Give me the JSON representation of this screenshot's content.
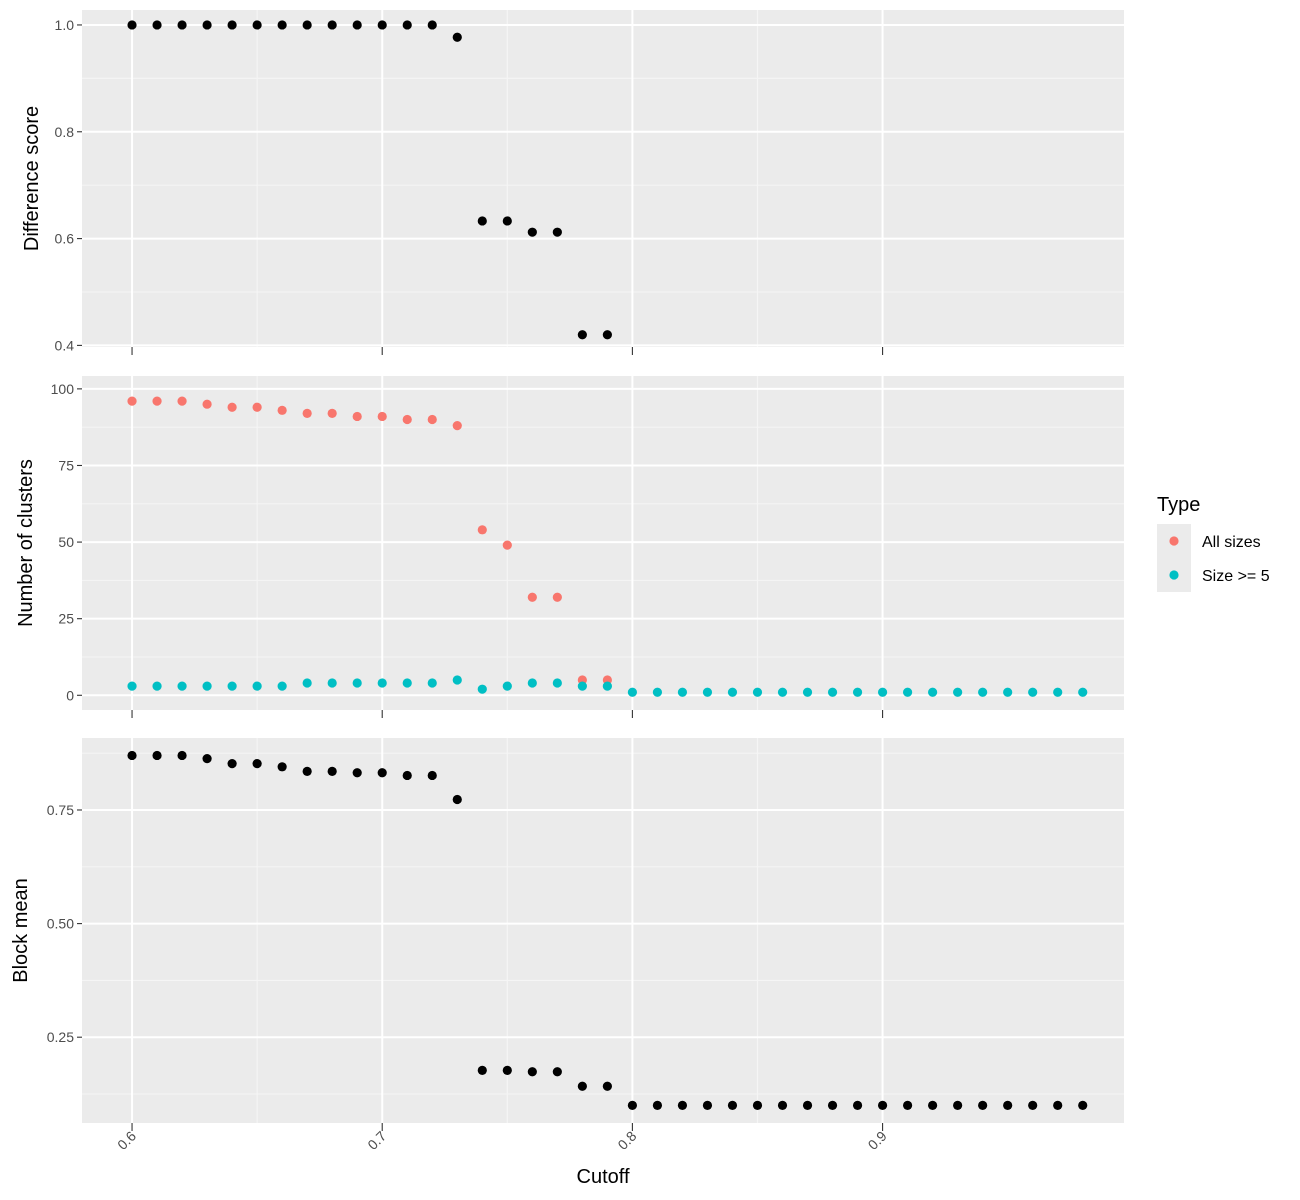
{
  "colors": {
    "panel_background": "#ebebeb",
    "grid_major": "#ffffff",
    "grid_minor": "#f5f5f5",
    "default_point": "#000000",
    "all_sizes": "#f8766d",
    "size_ge_5": "#00bfc4",
    "axis_tick": "#333333"
  },
  "chart_data": [
    {
      "type": "scatter",
      "ylabel": "Difference score",
      "ylim": [
        0.4,
        1.0
      ],
      "yticks": [
        0.4,
        0.6,
        0.8,
        1.0
      ],
      "ytick_labels": [
        "0.4",
        "0.6",
        "0.8",
        "1.0"
      ],
      "series": [
        {
          "x": [
            0.6,
            0.61,
            0.62,
            0.63,
            0.64,
            0.65,
            0.66,
            0.67,
            0.68,
            0.69,
            0.7,
            0.71,
            0.72,
            0.73,
            0.74,
            0.75,
            0.76,
            0.77,
            0.78,
            0.79
          ],
          "y": [
            1.0,
            1.0,
            1.0,
            1.0,
            1.0,
            1.0,
            1.0,
            1.0,
            1.0,
            1.0,
            1.0,
            1.0,
            1.0,
            0.977,
            0.633,
            0.633,
            0.612,
            0.612,
            0.42,
            0.42
          ],
          "color": "#000000"
        }
      ]
    },
    {
      "type": "scatter",
      "ylabel": "Number of clusters",
      "ylim": [
        0,
        100
      ],
      "yticks": [
        0,
        25,
        50,
        75,
        100
      ],
      "ytick_labels": [
        "0",
        "25",
        "50",
        "75",
        "100"
      ],
      "series": [
        {
          "name": "All sizes",
          "color": "#f8766d",
          "x": [
            0.6,
            0.61,
            0.62,
            0.63,
            0.64,
            0.65,
            0.66,
            0.67,
            0.68,
            0.69,
            0.7,
            0.71,
            0.72,
            0.73,
            0.74,
            0.75,
            0.76,
            0.77,
            0.78,
            0.79
          ],
          "y": [
            96,
            96,
            96,
            95,
            94,
            94,
            93,
            92,
            92,
            91,
            91,
            90,
            90,
            88,
            54,
            49,
            32,
            32,
            5,
            5
          ]
        },
        {
          "name": "Size >= 5",
          "color": "#00bfc4",
          "x": [
            0.6,
            0.61,
            0.62,
            0.63,
            0.64,
            0.65,
            0.66,
            0.67,
            0.68,
            0.69,
            0.7,
            0.71,
            0.72,
            0.73,
            0.74,
            0.75,
            0.76,
            0.77,
            0.78,
            0.79,
            0.8,
            0.81,
            0.82,
            0.83,
            0.84,
            0.85,
            0.86,
            0.87,
            0.88,
            0.89,
            0.9,
            0.91,
            0.92,
            0.93,
            0.94,
            0.95,
            0.96,
            0.97,
            0.98
          ],
          "y": [
            3,
            3,
            3,
            3,
            3,
            3,
            3,
            4,
            4,
            4,
            4,
            4,
            4,
            5,
            2,
            3,
            4,
            4,
            3,
            3,
            1,
            1,
            1,
            1,
            1,
            1,
            1,
            1,
            1,
            1,
            1,
            1,
            1,
            1,
            1,
            1,
            1,
            1,
            1
          ]
        }
      ]
    },
    {
      "type": "scatter",
      "ylabel": "Block mean",
      "ylim": [
        0.1,
        0.87
      ],
      "yticks": [
        0.25,
        0.5,
        0.75
      ],
      "ytick_labels": [
        "0.25",
        "0.50",
        "0.75"
      ],
      "series": [
        {
          "color": "#000000",
          "x": [
            0.6,
            0.61,
            0.62,
            0.63,
            0.64,
            0.65,
            0.66,
            0.67,
            0.68,
            0.69,
            0.7,
            0.71,
            0.72,
            0.73,
            0.74,
            0.75,
            0.76,
            0.77,
            0.78,
            0.79,
            0.8,
            0.81,
            0.82,
            0.83,
            0.84,
            0.85,
            0.86,
            0.87,
            0.88,
            0.89,
            0.9,
            0.91,
            0.92,
            0.93,
            0.94,
            0.95,
            0.96,
            0.97,
            0.98
          ],
          "y": [
            0.87,
            0.87,
            0.87,
            0.863,
            0.852,
            0.852,
            0.845,
            0.835,
            0.835,
            0.832,
            0.832,
            0.826,
            0.826,
            0.773,
            0.177,
            0.177,
            0.174,
            0.174,
            0.142,
            0.142,
            0.1,
            0.1,
            0.1,
            0.1,
            0.1,
            0.1,
            0.1,
            0.1,
            0.1,
            0.1,
            0.1,
            0.1,
            0.1,
            0.1,
            0.1,
            0.1,
            0.1,
            0.1,
            0.1
          ]
        }
      ]
    }
  ],
  "x_axis": {
    "label": "Cutoff",
    "range": [
      0.58,
      0.9965
    ],
    "ticks": [
      0.6,
      0.7,
      0.8,
      0.9
    ],
    "tick_labels": [
      "0.6",
      "0.7",
      "0.8",
      "0.9"
    ]
  },
  "legend": {
    "title": "Type",
    "placement": "right",
    "items": [
      {
        "label": "All sizes",
        "color": "#f8766d"
      },
      {
        "label": "Size >= 5",
        "color": "#00bfc4"
      }
    ]
  }
}
